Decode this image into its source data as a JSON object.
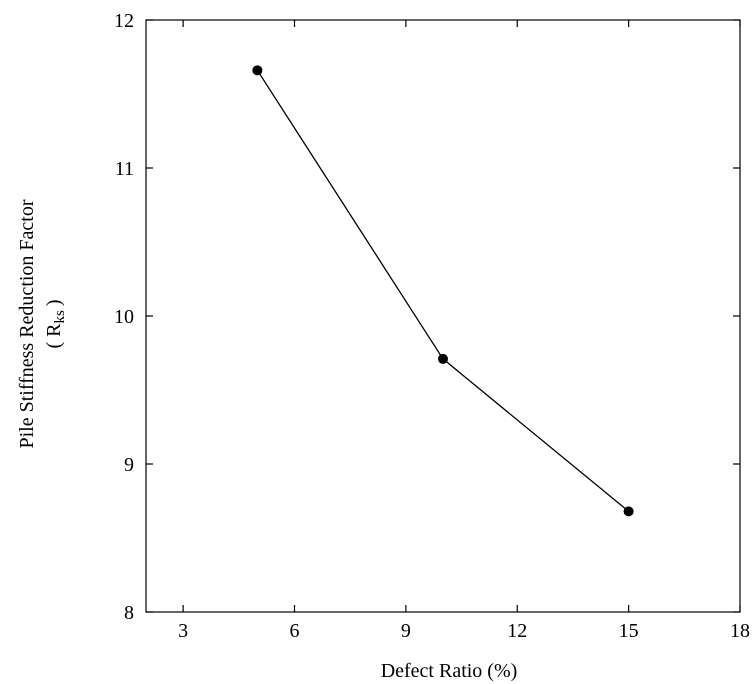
{
  "chart_data": {
    "type": "line",
    "x": [
      5,
      10,
      15
    ],
    "series": [
      {
        "values": [
          11.66,
          9.71,
          8.68
        ]
      }
    ],
    "xlabel": "Defect Ratio (%)",
    "ylabel": "Pile Stiffness Reduction Factor",
    "ylabel_line2_open": "( R",
    "ylabel_line2_sub": "ks",
    "ylabel_line2_close": ")",
    "xlim": [
      2,
      18
    ],
    "ylim": [
      8,
      12
    ],
    "xticks": [
      3,
      6,
      9,
      12,
      15,
      18
    ],
    "yticks": [
      8,
      9,
      10,
      11,
      12
    ],
    "grid": false,
    "line_color": "#000000",
    "marker_color": "#000000"
  }
}
